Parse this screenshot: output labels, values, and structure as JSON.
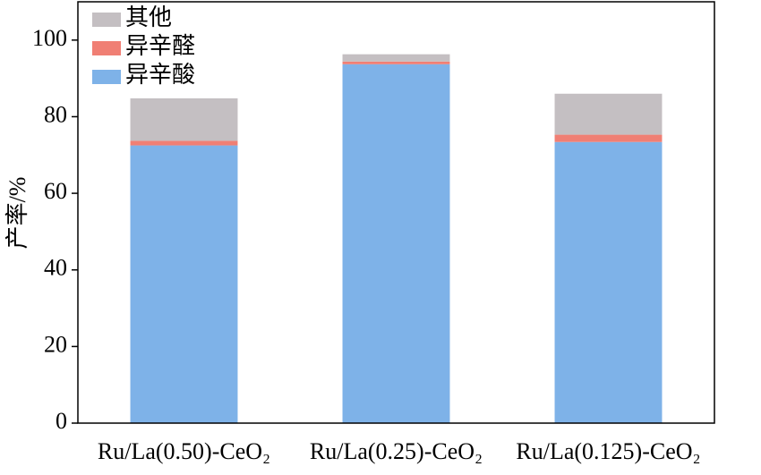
{
  "chart_data": {
    "type": "stacked-bar",
    "y_label": "产率/%",
    "categories": [
      "Ru/La(0.50)-CeO₂",
      "Ru/La(0.25)-CeO₂",
      "Ru/La(0.125)-CeO₂"
    ],
    "series": [
      {
        "name": "异辛酸",
        "color": "#7eb2e8",
        "values": [
          72.5,
          93.7,
          73.4
        ]
      },
      {
        "name": "异辛醛",
        "color": "#f07f74",
        "values": [
          1.2,
          0.7,
          1.9
        ]
      },
      {
        "name": "其他",
        "color": "#c4bfc2",
        "values": [
          11.1,
          1.9,
          10.7
        ]
      }
    ],
    "ylim": [
      0,
      110
    ],
    "yticks": [
      0,
      20,
      40,
      60,
      80,
      100
    ],
    "legend": "upper-left"
  }
}
